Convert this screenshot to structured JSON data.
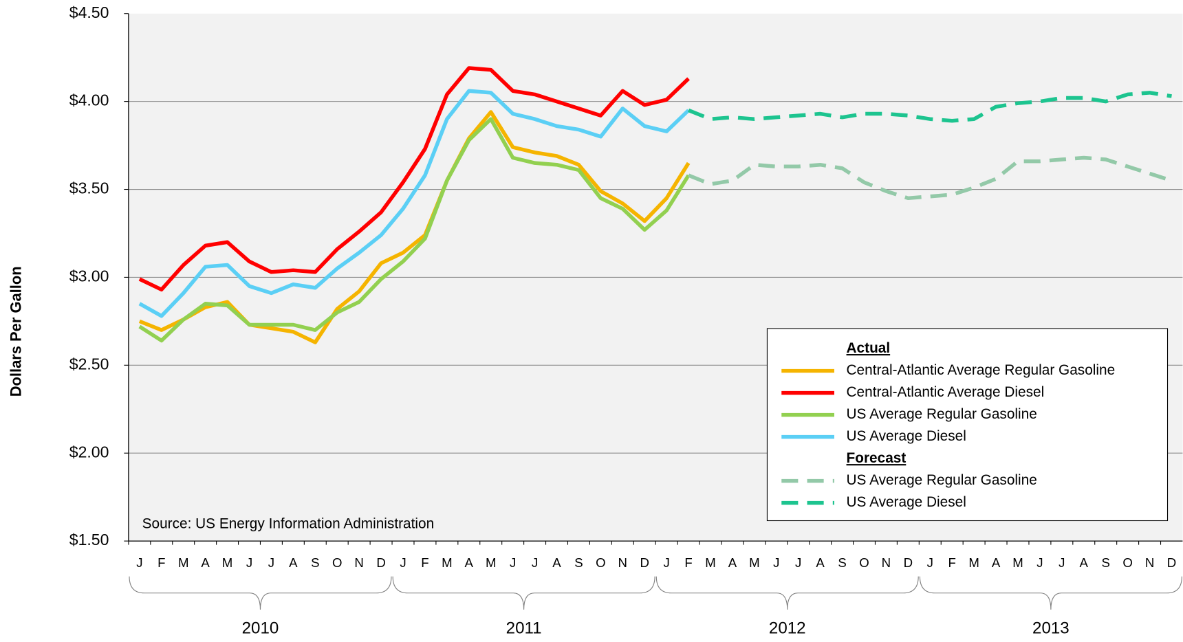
{
  "chart_data": {
    "type": "line",
    "y_axis_label": "Dollars Per Gallon",
    "annotation": "Source: US Energy Information Administration",
    "categories": [
      "J",
      "F",
      "M",
      "A",
      "M",
      "J",
      "J",
      "A",
      "S",
      "O",
      "N",
      "D",
      "J",
      "F",
      "M",
      "A",
      "M",
      "J",
      "J",
      "A",
      "S",
      "O",
      "N",
      "D",
      "J",
      "F",
      "M",
      "A",
      "M",
      "J",
      "J",
      "A",
      "S",
      "O",
      "N",
      "D",
      "J",
      "F",
      "M",
      "A",
      "M",
      "J",
      "J",
      "A",
      "S",
      "O",
      "N",
      "D"
    ],
    "years": [
      "2010",
      "2011",
      "2012",
      "2013"
    ],
    "legend_headers": [
      "Actual",
      "Forecast"
    ],
    "series": [
      {
        "name": "Central-Atlantic Average Regular Gasoline",
        "color": "#f5b400",
        "dashed": false,
        "values": [
          2.75,
          2.7,
          2.76,
          2.83,
          2.86,
          2.73,
          2.71,
          2.69,
          2.63,
          2.82,
          2.92,
          3.08,
          3.14,
          3.24,
          3.55,
          3.79,
          3.94,
          3.74,
          3.71,
          3.69,
          3.64,
          3.49,
          3.42,
          3.32,
          3.45,
          3.65,
          null,
          null,
          null,
          null,
          null,
          null,
          null,
          null,
          null,
          null,
          null,
          null,
          null,
          null,
          null,
          null,
          null,
          null,
          null,
          null,
          null,
          null
        ]
      },
      {
        "name": "Central-Atlantic Average Diesel",
        "color": "#ff0000",
        "dashed": false,
        "values": [
          2.99,
          2.93,
          3.07,
          3.18,
          3.2,
          3.09,
          3.03,
          3.04,
          3.03,
          3.16,
          3.26,
          3.37,
          3.54,
          3.73,
          4.04,
          4.19,
          4.18,
          4.06,
          4.04,
          4.0,
          3.96,
          3.92,
          4.06,
          3.98,
          4.01,
          4.13,
          null,
          null,
          null,
          null,
          null,
          null,
          null,
          null,
          null,
          null,
          null,
          null,
          null,
          null,
          null,
          null,
          null,
          null,
          null,
          null,
          null,
          null
        ]
      },
      {
        "name": "US Average Regular Gasoline",
        "color": "#92d050",
        "dashed": false,
        "values": [
          2.72,
          2.64,
          2.76,
          2.85,
          2.84,
          2.73,
          2.73,
          2.73,
          2.7,
          2.8,
          2.86,
          2.99,
          3.09,
          3.22,
          3.55,
          3.78,
          3.9,
          3.68,
          3.65,
          3.64,
          3.61,
          3.45,
          3.39,
          3.27,
          3.38,
          3.58,
          null,
          null,
          null,
          null,
          null,
          null,
          null,
          null,
          null,
          null,
          null,
          null,
          null,
          null,
          null,
          null,
          null,
          null,
          null,
          null,
          null,
          null
        ]
      },
      {
        "name": "US Average Diesel",
        "color": "#5bcff5",
        "dashed": false,
        "values": [
          2.85,
          2.78,
          2.91,
          3.06,
          3.07,
          2.95,
          2.91,
          2.96,
          2.94,
          3.05,
          3.14,
          3.24,
          3.39,
          3.58,
          3.9,
          4.06,
          4.05,
          3.93,
          3.9,
          3.86,
          3.84,
          3.8,
          3.96,
          3.86,
          3.83,
          3.95,
          null,
          null,
          null,
          null,
          null,
          null,
          null,
          null,
          null,
          null,
          null,
          null,
          null,
          null,
          null,
          null,
          null,
          null,
          null,
          null,
          null,
          null
        ]
      },
      {
        "name": "US Average Regular Gasoline",
        "color": "#93c9a8",
        "dashed": true,
        "values": [
          null,
          null,
          null,
          null,
          null,
          null,
          null,
          null,
          null,
          null,
          null,
          null,
          null,
          null,
          null,
          null,
          null,
          null,
          null,
          null,
          null,
          null,
          null,
          null,
          null,
          3.58,
          3.53,
          3.55,
          3.64,
          3.63,
          3.63,
          3.64,
          3.62,
          3.54,
          3.49,
          3.45,
          3.46,
          3.47,
          3.51,
          3.56,
          3.66,
          3.66,
          3.67,
          3.68,
          3.67,
          3.63,
          3.59,
          3.55
        ]
      },
      {
        "name": "US Average Diesel",
        "color": "#1dc48f",
        "dashed": true,
        "values": [
          null,
          null,
          null,
          null,
          null,
          null,
          null,
          null,
          null,
          null,
          null,
          null,
          null,
          null,
          null,
          null,
          null,
          null,
          null,
          null,
          null,
          null,
          null,
          null,
          null,
          3.95,
          3.9,
          3.91,
          3.9,
          3.91,
          3.92,
          3.93,
          3.91,
          3.93,
          3.93,
          3.92,
          3.9,
          3.89,
          3.9,
          3.97,
          3.99,
          4.0,
          4.02,
          4.02,
          4.0,
          4.04,
          4.05,
          4.03
        ]
      }
    ],
    "ylim": [
      1.5,
      4.5
    ],
    "yticks": [
      {
        "value": 1.5,
        "label": "$1.50"
      },
      {
        "value": 2,
        "label": "$2.00"
      },
      {
        "value": 2.5,
        "label": "$2.50"
      },
      {
        "value": 3,
        "label": "$3.00"
      },
      {
        "value": 3.5,
        "label": "$3.50"
      },
      {
        "value": 4,
        "label": "$4.00"
      },
      {
        "value": 4.5,
        "label": "$4.50"
      }
    ],
    "grid": true
  }
}
